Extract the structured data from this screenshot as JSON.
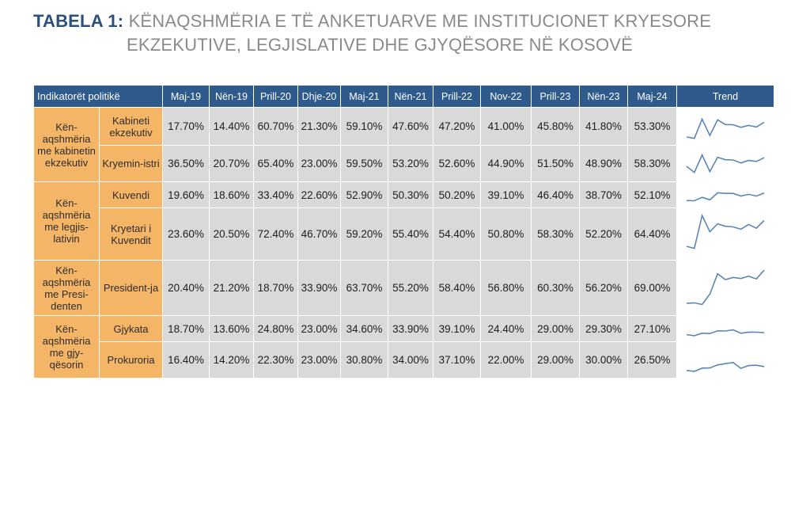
{
  "title": {
    "prefix": "TABELA 1:",
    "line1": "KËNAQSHMËRIA E TË ANKETUARVE ME INSTITUCIONET KRYESORE",
    "line2": "EKZEKUTIVE, LEGJISLATIVE DHE GJYQËSORE NË KOSOVË"
  },
  "table": {
    "indicator_header": "Indikatorët politikë",
    "trend_header": "Trend",
    "periods": [
      "Maj-19",
      "Nën-19",
      "Prill-20",
      "Dhje-20",
      "Maj-21",
      "Nën-21",
      "Prill-22",
      "Nov-22",
      "Prill-23",
      "Nën-23",
      "Maj-24"
    ],
    "groups": [
      {
        "label": "Kën-aqshmëria me kabinetin ekzekutiv",
        "rowspan": 2
      },
      {
        "label": "Kën-aqshmëria me legjis-lativin",
        "rowspan": 2
      },
      {
        "label": "Kën-aqshmëria me Presi-denten",
        "rowspan": 1
      },
      {
        "label": "Kën-aqshmëria me gjy-qësorin",
        "rowspan": 2
      }
    ],
    "rows": [
      {
        "label": "Kabineti ekzekutiv",
        "values": [
          "17.70%",
          "14.40%",
          "60.70%",
          "21.30%",
          "59.10%",
          "47.60%",
          "47.20%",
          "41.00%",
          "45.80%",
          "41.80%",
          "53.30%"
        ],
        "series": [
          17.7,
          14.4,
          60.7,
          21.3,
          59.1,
          47.6,
          47.2,
          41.0,
          45.8,
          41.8,
          53.3
        ]
      },
      {
        "label": "Kryemin-istri",
        "values": [
          "36.50%",
          "20.70%",
          "65.40%",
          "23.00%",
          "59.50%",
          "53.20%",
          "52.60%",
          "44.90%",
          "51.50%",
          "48.90%",
          "58.30%"
        ],
        "series": [
          36.5,
          20.7,
          65.4,
          23.0,
          59.5,
          53.2,
          52.6,
          44.9,
          51.5,
          48.9,
          58.3
        ]
      },
      {
        "label": "Kuvendi",
        "values": [
          "19.60%",
          "18.60%",
          "33.40%",
          "22.60%",
          "52.90%",
          "50.30%",
          "50.20%",
          "39.10%",
          "46.40%",
          "38.70%",
          "52.10%"
        ],
        "series": [
          19.6,
          18.6,
          33.4,
          22.6,
          52.9,
          50.3,
          50.2,
          39.1,
          46.4,
          38.7,
          52.1
        ]
      },
      {
        "label": "Kryetari i Kuvendit",
        "values": [
          "23.60%",
          "20.50%",
          "72.40%",
          "46.70%",
          "59.20%",
          "55.40%",
          "54.40%",
          "50.80%",
          "58.30%",
          "52.20%",
          "64.40%"
        ],
        "series": [
          23.6,
          20.5,
          72.4,
          46.7,
          59.2,
          55.4,
          54.4,
          50.8,
          58.3,
          52.2,
          64.4
        ]
      },
      {
        "label": "President-ja",
        "values": [
          "20.40%",
          "21.20%",
          "18.70%",
          "33.90%",
          "63.70%",
          "55.20%",
          "58.40%",
          "56.80%",
          "60.30%",
          "56.20%",
          "69.00%"
        ],
        "series": [
          20.4,
          21.2,
          18.7,
          33.9,
          63.7,
          55.2,
          58.4,
          56.8,
          60.3,
          56.2,
          69.0
        ]
      },
      {
        "label": "Gjykata",
        "values": [
          "18.70%",
          "13.60%",
          "24.80%",
          "23.00%",
          "34.60%",
          "33.90%",
          "39.10%",
          "24.40%",
          "29.00%",
          "29.30%",
          "27.10%"
        ],
        "series": [
          18.7,
          13.6,
          24.8,
          23.0,
          34.6,
          33.9,
          39.1,
          24.4,
          29.0,
          29.3,
          27.1
        ]
      },
      {
        "label": "Prokuroria",
        "values": [
          "16.40%",
          "14.20%",
          "22.30%",
          "23.00%",
          "30.80%",
          "34.00%",
          "37.10%",
          "22.00%",
          "29.00%",
          "30.00%",
          "26.50%"
        ],
        "series": [
          16.4,
          14.2,
          22.3,
          23.0,
          30.8,
          34.0,
          37.1,
          22.0,
          29.0,
          30.0,
          26.5
        ]
      }
    ],
    "colors": {
      "header_bg": "#2e5b8c",
      "label_bg": "#f5b567",
      "value_bg": "#d9d9d9",
      "sparkline": "#5b86b6",
      "title_prefix": "#2b4f7e",
      "title_text": "#8a8a8a"
    }
  }
}
